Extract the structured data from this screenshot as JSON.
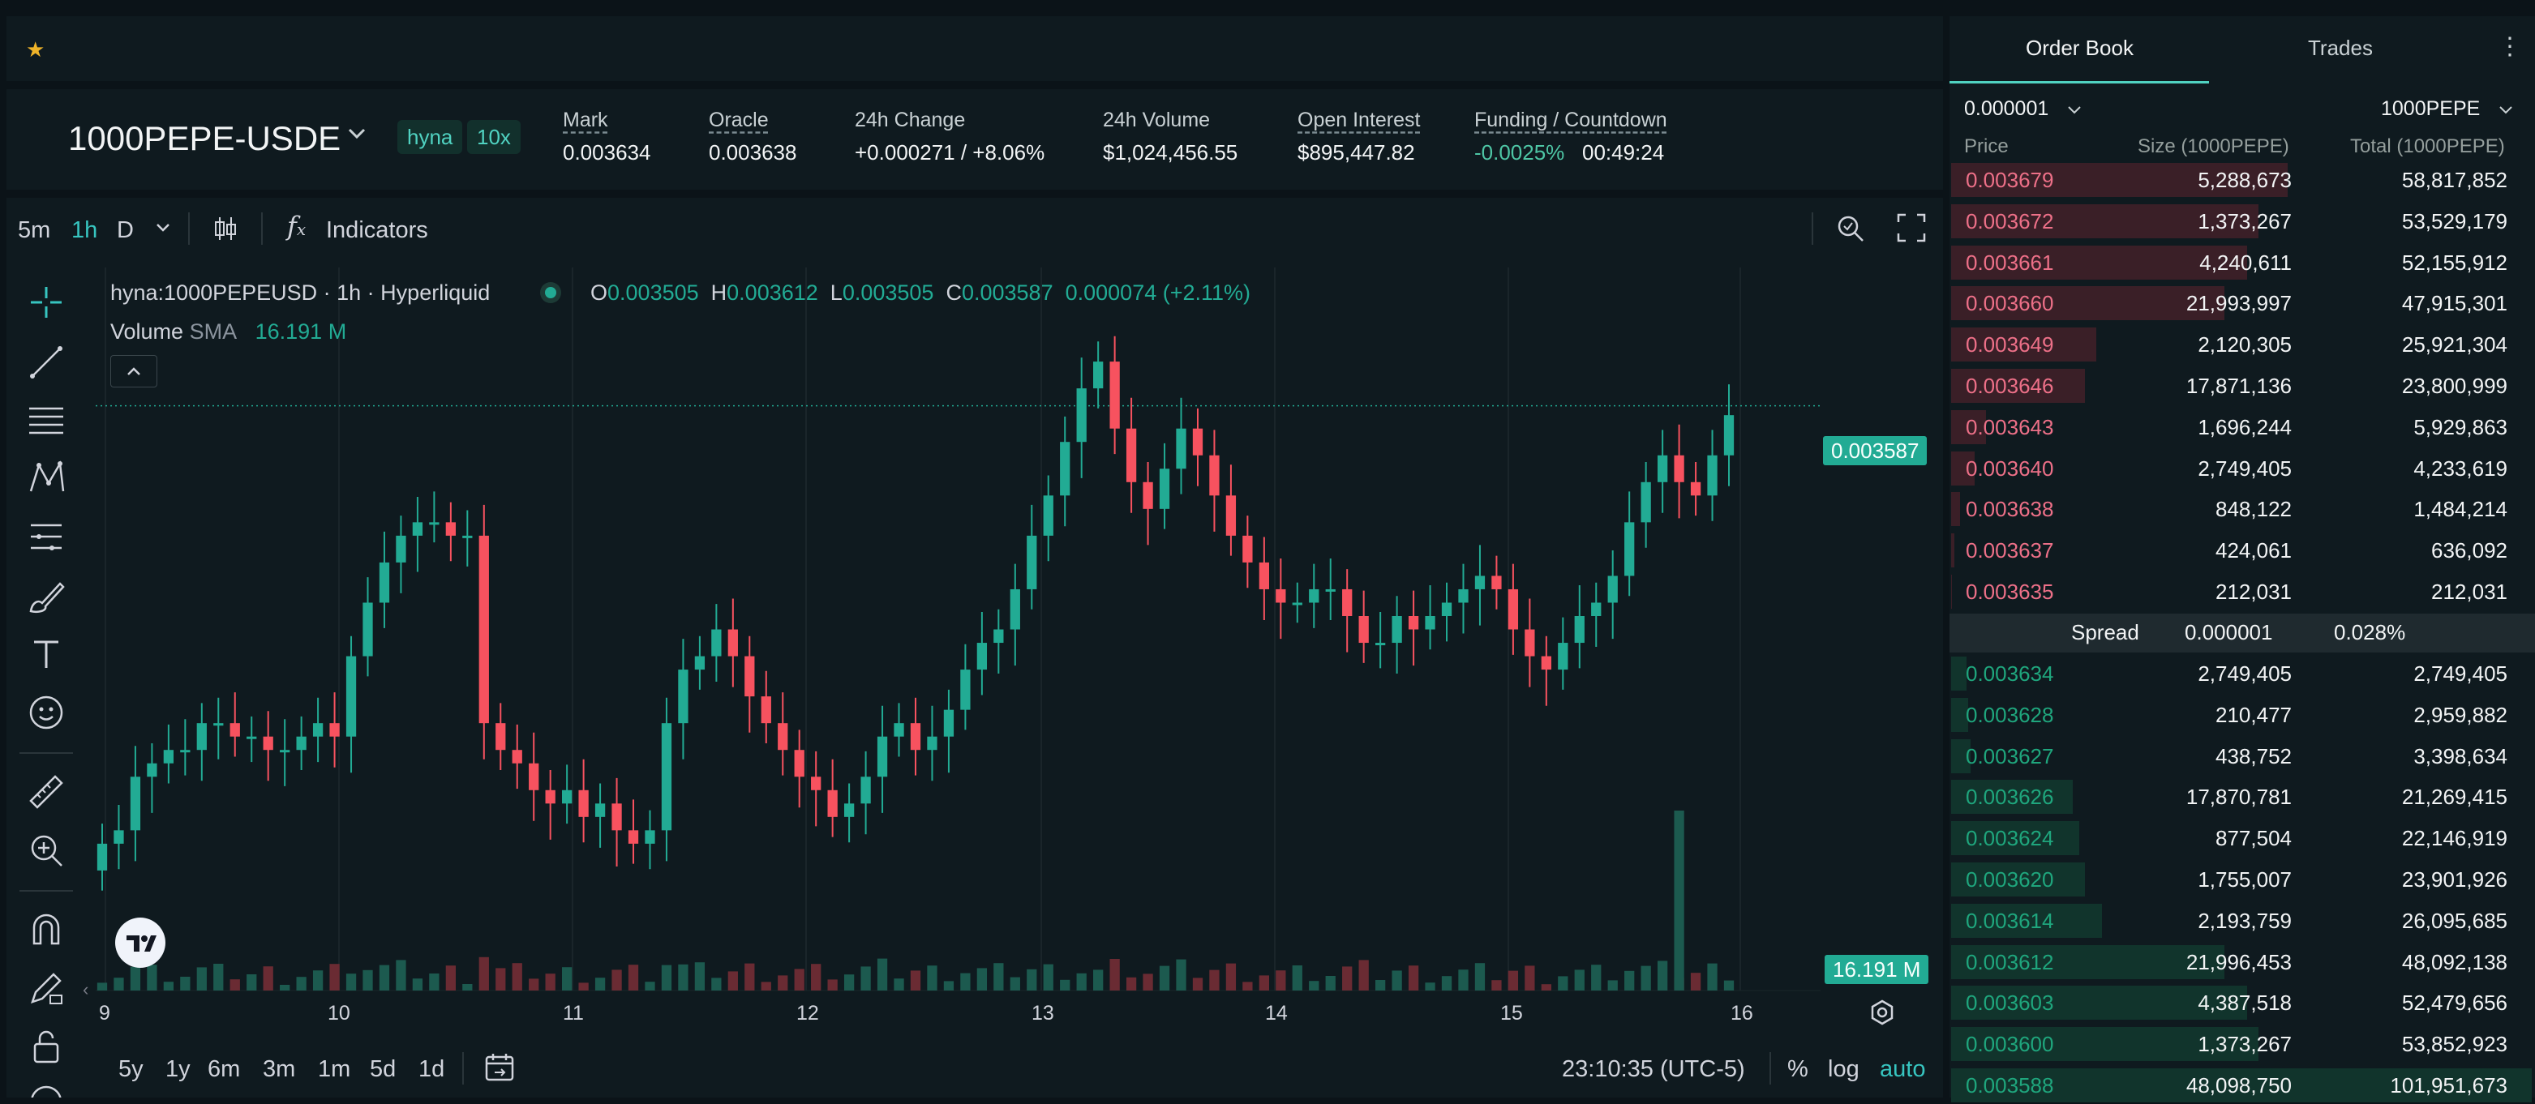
{
  "market": {
    "symbol": "1000PEPE-USDE",
    "badge_dex": "hyna",
    "badge_leverage": "10x",
    "stats": [
      {
        "label": "Mark",
        "value": "0.003634"
      },
      {
        "label": "Oracle",
        "value": "0.003638"
      },
      {
        "label": "24h Change",
        "value": "+0.000271 / +8.06%"
      },
      {
        "label": "24h Volume",
        "value": "$1,024,456.55"
      },
      {
        "label": "Open Interest",
        "value": "$895,447.82"
      },
      {
        "label": "Funding / Countdown",
        "value": "-0.0025%",
        "value2": "00:49:24"
      }
    ]
  },
  "toolbar": {
    "intervals": [
      "5m",
      "1h",
      "D"
    ],
    "active_interval": "1h",
    "indicators_label": "Indicators"
  },
  "chart": {
    "legend_title": "hyna:1000PEPEUSD · 1h · Hyperliquid",
    "ohlc": {
      "o_label": "O",
      "o": "0.003505",
      "h_label": "H",
      "h": "0.003612",
      "l_label": "L",
      "l": "0.003505",
      "c_label": "C",
      "c": "0.003587",
      "change": "0.000074 (+2.11%)"
    },
    "volume_label": "Volume",
    "sma_label": "SMA",
    "volume_value": "16.191 M",
    "last_price_badge": "0.003587",
    "volume_badge": "16.191 M",
    "x_labels": [
      "9",
      "10",
      "11",
      "12",
      "13",
      "14",
      "15",
      "16"
    ],
    "colors": {
      "up": "#22ab94",
      "down": "#f7525f",
      "accent": "#50d2c1"
    }
  },
  "chart_data": {
    "type": "candlestick",
    "interval": "1h",
    "x_axis_days": [
      "9",
      "10",
      "11",
      "12",
      "13",
      "14",
      "15",
      "16"
    ],
    "last_close": 0.003587,
    "last_open": 0.003505,
    "last_high": 0.003612,
    "last_low": 0.003505,
    "last_volume": "16.191 M",
    "close_path": [
      0.00326,
      0.00327,
      0.00331,
      0.00332,
      0.00333,
      0.00333,
      0.00335,
      0.00335,
      0.00334,
      0.00334,
      0.00333,
      0.00333,
      0.00334,
      0.00335,
      0.00334,
      0.0034,
      0.00344,
      0.00347,
      0.00349,
      0.0035,
      0.0035,
      0.00349,
      0.00349,
      0.00335,
      0.00333,
      0.00332,
      0.0033,
      0.00329,
      0.0033,
      0.00328,
      0.00329,
      0.00327,
      0.00326,
      0.00327,
      0.00335,
      0.00339,
      0.0034,
      0.00342,
      0.0034,
      0.00337,
      0.00335,
      0.00333,
      0.00331,
      0.0033,
      0.00328,
      0.00329,
      0.00331,
      0.00334,
      0.00335,
      0.00333,
      0.00334,
      0.00336,
      0.00339,
      0.00341,
      0.00342,
      0.00345,
      0.00349,
      0.00352,
      0.00356,
      0.0036,
      0.00362,
      0.00357,
      0.00353,
      0.00351,
      0.00354,
      0.00357,
      0.00355,
      0.00352,
      0.00349,
      0.00347,
      0.00345,
      0.00344,
      0.00344,
      0.00345,
      0.00345,
      0.00343,
      0.00341,
      0.00341,
      0.00343,
      0.00342,
      0.00343,
      0.00344,
      0.00345,
      0.00346,
      0.00345,
      0.00342,
      0.0034,
      0.00339,
      0.00341,
      0.00343,
      0.00344,
      0.00346,
      0.0035,
      0.00353,
      0.00355,
      0.00353,
      0.00352,
      0.00355,
      0.00358
    ]
  },
  "bottom": {
    "ranges": [
      "5y",
      "1y",
      "6m",
      "3m",
      "1m",
      "5d",
      "1d"
    ],
    "time": "23:10:35 (UTC-5)",
    "percent": "%",
    "log": "log",
    "auto": "auto"
  },
  "orderbook": {
    "tabs": [
      "Order Book",
      "Trades"
    ],
    "tick_size": "0.000001",
    "unit": "1000PEPE",
    "columns": [
      "Price",
      "Size (1000PEPE)",
      "Total (1000PEPE)"
    ],
    "asks": [
      {
        "price": "0.003679",
        "size": "5,288,673",
        "total": "58,817,852",
        "depth": 0.58
      },
      {
        "price": "0.003672",
        "size": "1,373,267",
        "total": "53,529,179",
        "depth": 0.53
      },
      {
        "price": "0.003661",
        "size": "4,240,611",
        "total": "52,155,912",
        "depth": 0.51
      },
      {
        "price": "0.003660",
        "size": "21,993,997",
        "total": "47,915,301",
        "depth": 0.47
      },
      {
        "price": "0.003649",
        "size": "2,120,305",
        "total": "25,921,304",
        "depth": 0.25
      },
      {
        "price": "0.003646",
        "size": "17,871,136",
        "total": "23,800,999",
        "depth": 0.23
      },
      {
        "price": "0.003643",
        "size": "1,696,244",
        "total": "5,929,863",
        "depth": 0.06
      },
      {
        "price": "0.003640",
        "size": "2,749,405",
        "total": "4,233,619",
        "depth": 0.04
      },
      {
        "price": "0.003638",
        "size": "848,122",
        "total": "1,484,214",
        "depth": 0.015
      },
      {
        "price": "0.003637",
        "size": "424,061",
        "total": "636,092",
        "depth": 0.006
      },
      {
        "price": "0.003635",
        "size": "212,031",
        "total": "212,031",
        "depth": 0.002
      }
    ],
    "spread_label": "Spread",
    "spread_value": "0.000001",
    "spread_pct": "0.028%",
    "bids": [
      {
        "price": "0.003634",
        "size": "2,749,405",
        "total": "2,749,405",
        "depth": 0.027
      },
      {
        "price": "0.003628",
        "size": "210,477",
        "total": "2,959,882",
        "depth": 0.029
      },
      {
        "price": "0.003627",
        "size": "438,752",
        "total": "3,398,634",
        "depth": 0.033
      },
      {
        "price": "0.003626",
        "size": "17,870,781",
        "total": "21,269,415",
        "depth": 0.21
      },
      {
        "price": "0.003624",
        "size": "877,504",
        "total": "22,146,919",
        "depth": 0.22
      },
      {
        "price": "0.003620",
        "size": "1,755,007",
        "total": "23,901,926",
        "depth": 0.23
      },
      {
        "price": "0.003614",
        "size": "2,193,759",
        "total": "26,095,685",
        "depth": 0.26
      },
      {
        "price": "0.003612",
        "size": "21,996,453",
        "total": "48,092,138",
        "depth": 0.47
      },
      {
        "price": "0.003603",
        "size": "4,387,518",
        "total": "52,479,656",
        "depth": 0.51
      },
      {
        "price": "0.003600",
        "size": "1,373,267",
        "total": "53,852,923",
        "depth": 0.53
      },
      {
        "price": "0.003588",
        "size": "48,098,750",
        "total": "101,951,673",
        "depth": 1.0
      }
    ],
    "colors": {
      "ask": "#ed7088",
      "bid": "#1fa67d"
    }
  }
}
